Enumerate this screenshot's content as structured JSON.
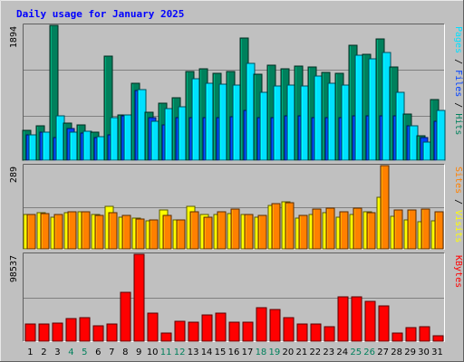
{
  "title": "Daily usage for January 2025",
  "colors": {
    "background": "#C0C0C0",
    "title": "#0000FF",
    "grid": "#808080",
    "hits": "#00805C",
    "files": "#0040FF",
    "pages": "#00E0FF",
    "visits": "#FFFF00",
    "sites": "#FF8000",
    "kbytes": "#FF0000",
    "weekend_day": "#00805C"
  },
  "chart_data": [
    {
      "type": "bar",
      "panel": "top",
      "max_label": "1894",
      "ylim": [
        0,
        1894
      ],
      "legend": {
        "parts": [
          "Pages",
          "Files",
          "Hits"
        ],
        "separator": " / "
      },
      "categories": [
        "1",
        "2",
        "3",
        "4",
        "5",
        "6",
        "7",
        "8",
        "9",
        "10",
        "11",
        "12",
        "13",
        "14",
        "15",
        "16",
        "17",
        "18",
        "19",
        "20",
        "21",
        "22",
        "23",
        "24",
        "25",
        "26",
        "27",
        "28",
        "29",
        "30",
        "31"
      ],
      "weekend_days": [
        "4",
        "5",
        "11",
        "12",
        "18",
        "19",
        "25",
        "26"
      ],
      "series": [
        {
          "name": "Hits",
          "values": [
            420,
            480,
            1894,
            520,
            500,
            400,
            1460,
            640,
            1080,
            670,
            800,
            880,
            1250,
            1290,
            1220,
            1250,
            1720,
            1210,
            1340,
            1290,
            1320,
            1310,
            1230,
            1220,
            1610,
            1490,
            1700,
            1310,
            650,
            340,
            850
          ]
        },
        {
          "name": "Files",
          "values": [
            350,
            390,
            320,
            450,
            380,
            320,
            350,
            620,
            980,
            600,
            500,
            600,
            600,
            600,
            600,
            610,
            700,
            600,
            600,
            620,
            620,
            600,
            600,
            600,
            620,
            620,
            620,
            620,
            480,
            320,
            550
          ]
        },
        {
          "name": "Pages",
          "values": [
            355,
            390,
            620,
            390,
            410,
            330,
            600,
            630,
            990,
            550,
            730,
            750,
            1140,
            1080,
            1070,
            1060,
            1360,
            950,
            1040,
            1050,
            1040,
            1180,
            1080,
            1060,
            1470,
            1430,
            1510,
            950,
            480,
            250,
            700
          ]
        }
      ]
    },
    {
      "type": "bar",
      "panel": "middle",
      "max_label": "289",
      "ylim": [
        0,
        289
      ],
      "legend": {
        "parts": [
          "Sites",
          "Visits"
        ],
        "separator": " / "
      },
      "categories": [
        "1",
        "2",
        "3",
        "4",
        "5",
        "6",
        "7",
        "8",
        "9",
        "10",
        "11",
        "12",
        "13",
        "14",
        "15",
        "16",
        "17",
        "18",
        "19",
        "20",
        "21",
        "22",
        "23",
        "24",
        "25",
        "26",
        "27",
        "28",
        "29",
        "30",
        "31"
      ],
      "series": [
        {
          "name": "Visits",
          "values": [
            118,
            125,
            110,
            125,
            130,
            118,
            148,
            110,
            107,
            98,
            135,
            100,
            148,
            120,
            118,
            123,
            118,
            110,
            150,
            162,
            108,
            118,
            126,
            110,
            118,
            130,
            178,
            112,
            100,
            95,
            96
          ]
        },
        {
          "name": "Sites",
          "values": [
            120,
            122,
            120,
            130,
            128,
            115,
            125,
            116,
            105,
            100,
            116,
            99,
            130,
            110,
            130,
            138,
            120,
            115,
            158,
            160,
            115,
            138,
            140,
            130,
            140,
            125,
            289,
            135,
            136,
            138,
            130
          ]
        }
      ]
    },
    {
      "type": "bar",
      "panel": "bottom",
      "max_label": "98537",
      "ylim": [
        0,
        98537
      ],
      "legend": {
        "parts": [
          "KBytes"
        ],
        "separator": ""
      },
      "categories": [
        "1",
        "2",
        "3",
        "4",
        "5",
        "6",
        "7",
        "8",
        "9",
        "10",
        "11",
        "12",
        "13",
        "14",
        "15",
        "16",
        "17",
        "18",
        "19",
        "20",
        "21",
        "22",
        "23",
        "24",
        "25",
        "26",
        "27",
        "28",
        "29",
        "30",
        "31"
      ],
      "series": [
        {
          "name": "KBytes",
          "values": [
            20000,
            20000,
            21000,
            26000,
            27000,
            17500,
            20000,
            55000,
            98537,
            31500,
            9000,
            23000,
            22000,
            29500,
            32000,
            21500,
            22000,
            37500,
            35500,
            27000,
            19500,
            19000,
            16000,
            50000,
            50000,
            45000,
            40000,
            9500,
            15000,
            16000,
            6000
          ]
        }
      ]
    }
  ]
}
